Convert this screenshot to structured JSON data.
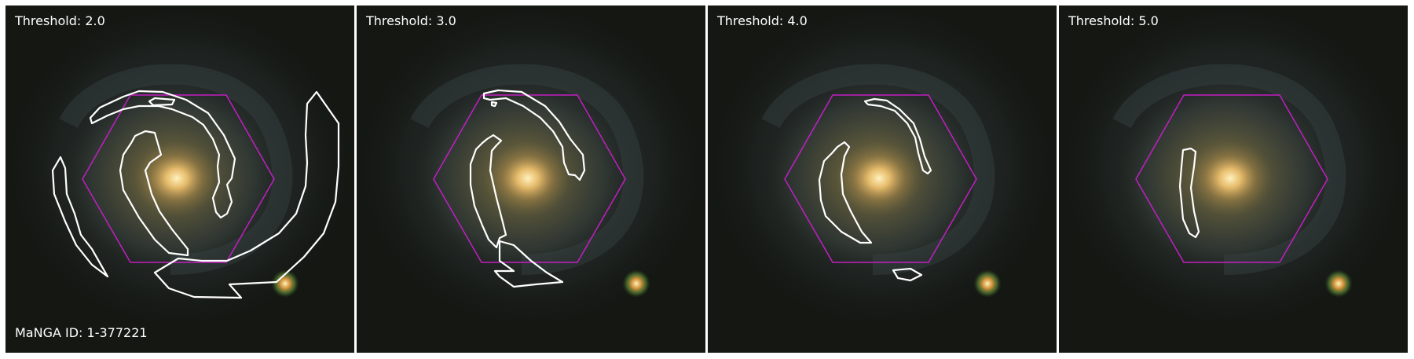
{
  "manga_id_label": "MaNGA ID: 1-377221",
  "colors": {
    "contour": "#ffffff",
    "hexagon": "#c21fc2",
    "background": "#141712",
    "bulge": "#f2c470"
  },
  "panels": [
    {
      "threshold_label": "Threshold: 2.0"
    },
    {
      "threshold_label": "Threshold: 3.0"
    },
    {
      "threshold_label": "Threshold: 4.0"
    },
    {
      "threshold_label": "Threshold: 5.0"
    }
  ]
}
